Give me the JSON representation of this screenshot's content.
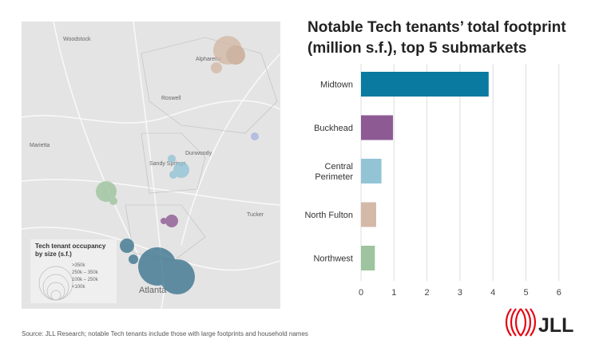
{
  "map": {
    "places": [
      "Woodstock",
      "Alpharetta",
      "Roswell",
      "Marietta",
      "Dunwoody",
      "Sandy Springs",
      "Tucker",
      "Atlanta"
    ],
    "legend": {
      "title_line1": "Tech tenant occupancy",
      "title_line2": "by size (s.f.)",
      "items": [
        ">350k",
        "250k  –  350k",
        "100k  –  250k",
        "<100k"
      ]
    }
  },
  "chart_data": {
    "type": "bar",
    "orientation": "horizontal",
    "title": "Notable Tech tenants’ total footprint (million s.f.), top 5 submarkets",
    "title_line1": "Notable Tech tenants’ total footprint",
    "title_line2": "(million s.f.), top 5 submarkets",
    "categories": [
      "Midtown",
      "Buckhead",
      "Central Perimeter",
      "North Fulton",
      "Northwest"
    ],
    "category_lines": [
      [
        "Midtown"
      ],
      [
        "Buckhead"
      ],
      [
        "Central",
        "Perimeter"
      ],
      [
        "North Fulton"
      ],
      [
        "Northwest"
      ]
    ],
    "values": [
      3.87,
      0.97,
      0.62,
      0.46,
      0.42
    ],
    "colors": [
      "#0b7aa1",
      "#8e5a94",
      "#93c4d6",
      "#d4b9a8",
      "#9dc49e"
    ],
    "xlim": [
      0,
      6
    ],
    "xticks": [
      "0",
      "1",
      "2",
      "3",
      "4",
      "5",
      "6"
    ],
    "grid": true
  },
  "source": "Source: JLL Research; notable Tech tenants include those with large footprints and household names",
  "logo": "JLL"
}
